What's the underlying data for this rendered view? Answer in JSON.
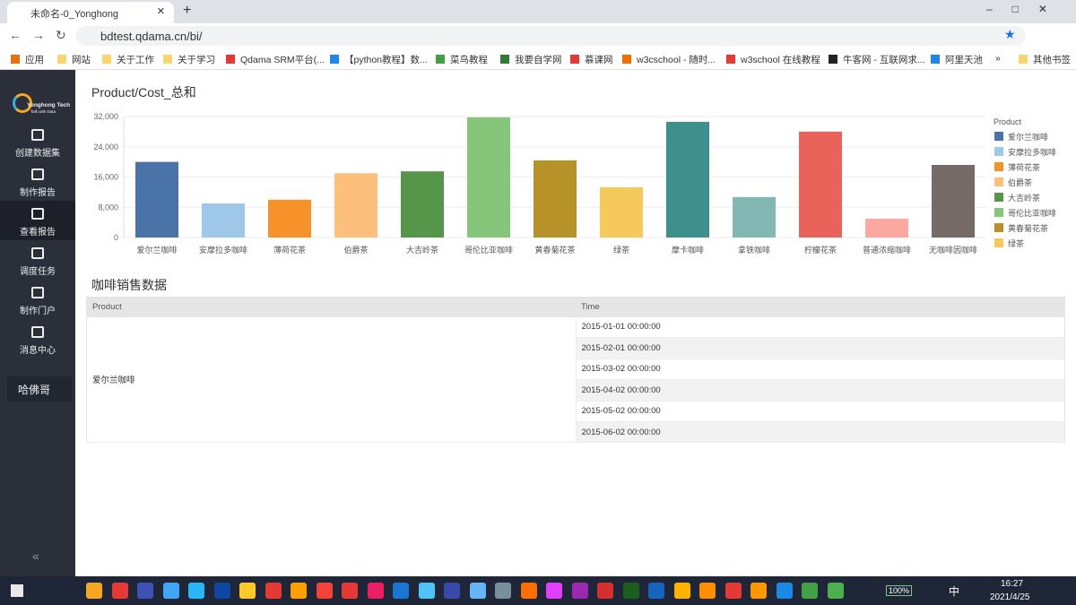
{
  "browser": {
    "tab_title": "未命名-0_Yonghong",
    "url": "bdtest.qdama.cn/bi/",
    "bookmarks": [
      "应用",
      "网站",
      "关于工作",
      "关于学习",
      "Qdama SRM平台(...",
      "【python教程】数...",
      "菜鸟教程",
      "我要自学网",
      "慕课网",
      "w3cschool - 随时...",
      "w3school 在线教程",
      "牛客网 - 互联网求...",
      "阿里天池",
      "»",
      "其他书签"
    ],
    "ime": "中"
  },
  "sidebar": {
    "logo": "Yonghong Tech",
    "slogan": "Talk with Data",
    "items": [
      "创建数据集",
      "制作报告",
      "查看报告",
      "调度任务",
      "制作门户",
      "消息中心"
    ],
    "active": 2,
    "user": "哈佛哥",
    "collapse": "«"
  },
  "chart_data": {
    "type": "bar",
    "title": "Product/Cost_总和",
    "categories": [
      "爱尔兰咖啡",
      "安摩拉多咖啡",
      "薄荷花茶",
      "伯爵茶",
      "大吉岭茶",
      "哥伦比亚咖啡",
      "黄春菊花茶",
      "绿茶",
      "摩卡咖啡",
      "拿铁咖啡",
      "柠檬花茶",
      "普通浓缩咖啡",
      "无咖啡因咖啡"
    ],
    "values": [
      20000,
      9000,
      10000,
      17000,
      17500,
      31800,
      20400,
      13300,
      30600,
      10700,
      28000,
      5000,
      19200
    ],
    "colors": [
      "#4a74a8",
      "#9fc7e8",
      "#f7922a",
      "#fcc07c",
      "#55964a",
      "#86c67a",
      "#b79228",
      "#f5c95c",
      "#3f8f8d",
      "#82b7b4",
      "#e9635a",
      "#fca89e",
      "#766a66"
    ],
    "ylim": [
      0,
      32000
    ],
    "yticks": [
      0,
      {
        "value": 8000,
        "label": "8,000"
      },
      {
        "value": 16000,
        "label": "16,000"
      },
      {
        "value": 24000,
        "label": "24,000"
      },
      {
        "value": 32000,
        "label": "32,000"
      }
    ],
    "grid": true,
    "legend_title": "Product",
    "legend_position": "right"
  },
  "table": {
    "title": "咖啡销售数据",
    "columns": [
      "Product",
      "Time"
    ],
    "product": "爱尔兰咖啡",
    "times": [
      "2015-01-01 00:00:00",
      "2015-02-01 00:00:00",
      "2015-03-02 00:00:00",
      "2015-04-02 00:00:00",
      "2015-05-02 00:00:00",
      "2015-06-02 00:00:00"
    ]
  },
  "taskbar": {
    "battery": "100%",
    "ime": "中",
    "time": "16:27",
    "date": "2021/4/25"
  }
}
